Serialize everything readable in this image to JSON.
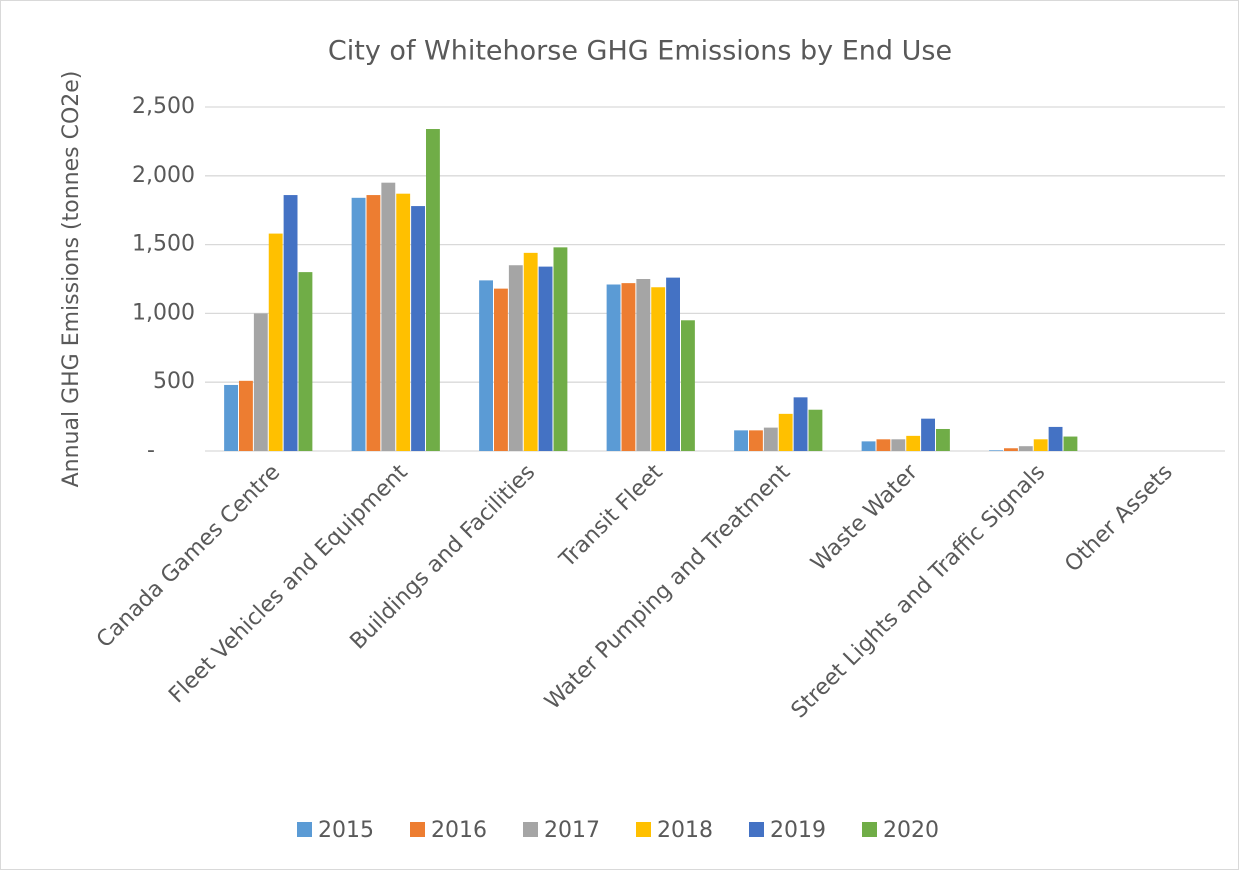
{
  "chart_data": {
    "type": "bar",
    "title": "City of Whitehorse GHG Emissions by End Use",
    "y_label": "Annual GHG Emissions (tonnes CO2e)",
    "categories": [
      "Canada Games Centre",
      "Fleet Vehicles and Equipment",
      "Buildings and Facilities",
      "Transit Fleet",
      "Water Pumping and Treatment",
      "Waste Water",
      "Street Lights and Traffic Signals",
      "Other Assets"
    ],
    "series": [
      {
        "name": "2015",
        "color": "#5b9bd5",
        "values": [
          480,
          1840,
          1240,
          1210,
          150,
          70,
          5,
          0
        ]
      },
      {
        "name": "2016",
        "color": "#ed7d31",
        "values": [
          510,
          1860,
          1180,
          1220,
          150,
          85,
          20,
          0
        ]
      },
      {
        "name": "2017",
        "color": "#a5a5a5",
        "values": [
          1000,
          1950,
          1350,
          1250,
          170,
          85,
          35,
          0
        ]
      },
      {
        "name": "2018",
        "color": "#ffc000",
        "values": [
          1580,
          1870,
          1440,
          1190,
          270,
          110,
          85,
          0
        ]
      },
      {
        "name": "2019",
        "color": "#4472c4",
        "values": [
          1860,
          1780,
          1340,
          1260,
          390,
          235,
          175,
          0
        ]
      },
      {
        "name": "2020",
        "color": "#70ad47",
        "values": [
          1300,
          2340,
          1480,
          950,
          300,
          160,
          105,
          0
        ]
      }
    ],
    "ylim": [
      0,
      2500
    ],
    "yticks": [
      {
        "value": 0,
        "label": "-"
      },
      500,
      {
        "value": 1000,
        "label": "1,000"
      },
      {
        "value": 1500,
        "label": "1,500"
      },
      {
        "value": 2000,
        "label": "2,000"
      },
      {
        "value": 2500,
        "label": "2,500"
      }
    ],
    "grid": true,
    "legend": "bottom"
  }
}
